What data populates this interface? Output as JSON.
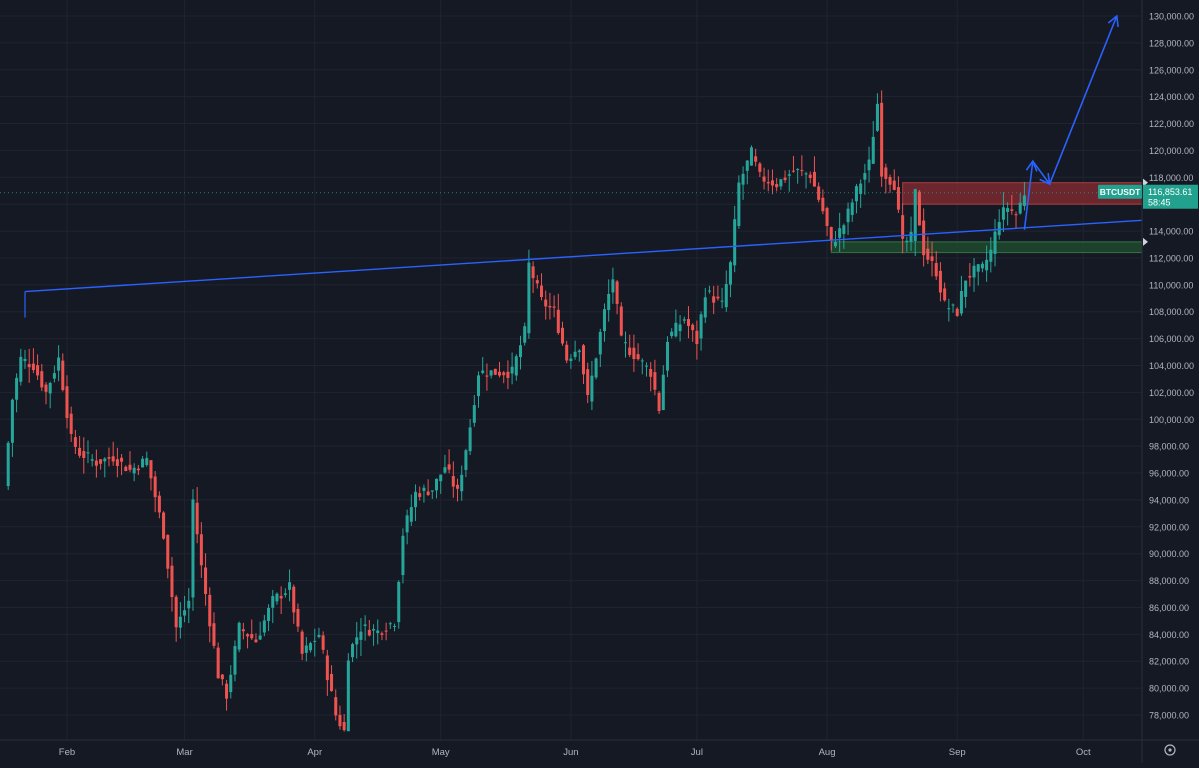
{
  "colors": {
    "background": "#151924",
    "grid": "#1f2430",
    "axis_text": "#b2b5be",
    "up": "#26a69a",
    "down": "#ef5350",
    "trendline": "#2962ff",
    "resistance_zone": "#8a2b31",
    "support_zone": "#1f4a2e",
    "price_label_bg": "#22a18e"
  },
  "chart_data": {
    "type": "candlestick",
    "symbol": "BTCUSDT",
    "current_price_label": "116,853.61",
    "countdown": "58:45",
    "x_axis": {
      "start_date": "2025-01-17",
      "end_date": "2025-10-15",
      "month_labels": [
        {
          "label": "Feb",
          "date": "2025-02-01"
        },
        {
          "label": "Mar",
          "date": "2025-03-01"
        },
        {
          "label": "Apr",
          "date": "2025-04-01"
        },
        {
          "label": "May",
          "date": "2025-05-01"
        },
        {
          "label": "Jun",
          "date": "2025-06-01"
        },
        {
          "label": "Jul",
          "date": "2025-07-01"
        },
        {
          "label": "Aug",
          "date": "2025-08-01"
        },
        {
          "label": "Sep",
          "date": "2025-09-01"
        },
        {
          "label": "Oct",
          "date": "2025-10-01"
        }
      ]
    },
    "y_axis": {
      "ylim": [
        76500,
        131000
      ],
      "ticks": [
        "78,000.00",
        "80,000.00",
        "82,000.00",
        "84,000.00",
        "86,000.00",
        "88,000.00",
        "90,000.00",
        "92,000.00",
        "94,000.00",
        "96,000.00",
        "98,000.00",
        "100,000.00",
        "102,000.00",
        "104,000.00",
        "106,000.00",
        "108,000.00",
        "110,000.00",
        "112,000.00",
        "114,000.00",
        "116,000.00",
        "118,000.00",
        "120,000.00",
        "122,000.00",
        "124,000.00",
        "126,000.00",
        "128,000.00",
        "130,000.00"
      ],
      "tick_values": [
        78000,
        80000,
        82000,
        84000,
        86000,
        88000,
        90000,
        92000,
        94000,
        96000,
        98000,
        100000,
        102000,
        104000,
        106000,
        108000,
        110000,
        112000,
        114000,
        116000,
        118000,
        120000,
        122000,
        124000,
        126000,
        128000,
        130000
      ]
    },
    "close_path": [
      [
        "2025-01-17",
        95000
      ],
      [
        "2025-01-19",
        101500
      ],
      [
        "2025-01-21",
        104500
      ],
      [
        "2025-01-24",
        104000
      ],
      [
        "2025-01-27",
        102000
      ],
      [
        "2025-01-30",
        104500
      ],
      [
        "2025-02-02",
        98500
      ],
      [
        "2025-02-04",
        97500
      ],
      [
        "2025-02-08",
        96800
      ],
      [
        "2025-02-12",
        97200
      ],
      [
        "2025-02-16",
        96200
      ],
      [
        "2025-02-20",
        97000
      ],
      [
        "2025-02-24",
        91500
      ],
      [
        "2025-02-27",
        84500
      ],
      [
        "2025-03-02",
        86500
      ],
      [
        "2025-03-03",
        94000
      ],
      [
        "2025-03-05",
        89000
      ],
      [
        "2025-03-09",
        81000
      ],
      [
        "2025-03-11",
        79500
      ],
      [
        "2025-03-14",
        84500
      ],
      [
        "2025-03-18",
        83500
      ],
      [
        "2025-03-22",
        86500
      ],
      [
        "2025-03-26",
        87500
      ],
      [
        "2025-03-29",
        82500
      ],
      [
        "2025-04-02",
        84000
      ],
      [
        "2025-04-06",
        78000
      ],
      [
        "2025-04-08",
        76800
      ],
      [
        "2025-04-09",
        82500
      ],
      [
        "2025-04-12",
        84500
      ],
      [
        "2025-04-16",
        84200
      ],
      [
        "2025-04-20",
        85000
      ],
      [
        "2025-04-22",
        91500
      ],
      [
        "2025-04-25",
        94500
      ],
      [
        "2025-04-29",
        94800
      ],
      [
        "2025-05-02",
        96500
      ],
      [
        "2025-05-05",
        94500
      ],
      [
        "2025-05-08",
        99500
      ],
      [
        "2025-05-10",
        103500
      ],
      [
        "2025-05-14",
        103500
      ],
      [
        "2025-05-18",
        103500
      ],
      [
        "2025-05-21",
        106500
      ],
      [
        "2025-05-22",
        111500
      ],
      [
        "2025-05-25",
        108800
      ],
      [
        "2025-05-28",
        108000
      ],
      [
        "2025-05-31",
        104500
      ],
      [
        "2025-06-03",
        105500
      ],
      [
        "2025-06-05",
        101500
      ],
      [
        "2025-06-09",
        108000
      ],
      [
        "2025-06-11",
        110500
      ],
      [
        "2025-06-13",
        105800
      ],
      [
        "2025-06-17",
        104500
      ],
      [
        "2025-06-20",
        103500
      ],
      [
        "2025-06-22",
        100800
      ],
      [
        "2025-06-24",
        106000
      ],
      [
        "2025-06-28",
        107500
      ],
      [
        "2025-07-01",
        105800
      ],
      [
        "2025-07-03",
        109500
      ],
      [
        "2025-07-07",
        108500
      ],
      [
        "2025-07-09",
        111500
      ],
      [
        "2025-07-11",
        117500
      ],
      [
        "2025-07-14",
        119800
      ],
      [
        "2025-07-16",
        118000
      ],
      [
        "2025-07-20",
        117500
      ],
      [
        "2025-07-24",
        118500
      ],
      [
        "2025-07-28",
        118200
      ],
      [
        "2025-07-31",
        115500
      ],
      [
        "2025-08-02",
        113000
      ],
      [
        "2025-08-05",
        114500
      ],
      [
        "2025-08-08",
        117000
      ],
      [
        "2025-08-11",
        119000
      ],
      [
        "2025-08-13",
        123500
      ],
      [
        "2025-08-14",
        118500
      ],
      [
        "2025-08-17",
        117500
      ],
      [
        "2025-08-19",
        113000
      ],
      [
        "2025-08-21",
        113500
      ],
      [
        "2025-08-22",
        116800
      ],
      [
        "2025-08-24",
        112500
      ],
      [
        "2025-08-27",
        111000
      ],
      [
        "2025-08-29",
        108500
      ],
      [
        "2025-09-01",
        108000
      ],
      [
        "2025-09-03",
        110500
      ],
      [
        "2025-09-05",
        111000
      ],
      [
        "2025-09-07",
        111200
      ],
      [
        "2025-09-09",
        112500
      ],
      [
        "2025-09-11",
        115000
      ],
      [
        "2025-09-13",
        115800
      ],
      [
        "2025-09-15",
        115200
      ],
      [
        "2025-09-17",
        116853
      ]
    ],
    "trendline": {
      "start": [
        "2025-01-22",
        109500
      ],
      "end": [
        "2025-10-15",
        114800
      ]
    },
    "resistance_zone": {
      "start": "2025-08-19",
      "end": "2025-10-15",
      "y0": 116000,
      "y1": 117600
    },
    "support_zone": {
      "start": "2025-08-02",
      "end": "2025-10-15",
      "y0": 112400,
      "y1": 113200
    },
    "projection_path": [
      [
        "2025-09-17",
        114100
      ],
      [
        "2025-09-19",
        119200
      ],
      [
        "2025-09-23",
        117500
      ],
      [
        "2025-10-09",
        130000
      ]
    ],
    "axis_markers": [
      117600,
      113200
    ],
    "settings_icon": "gear-icon"
  }
}
